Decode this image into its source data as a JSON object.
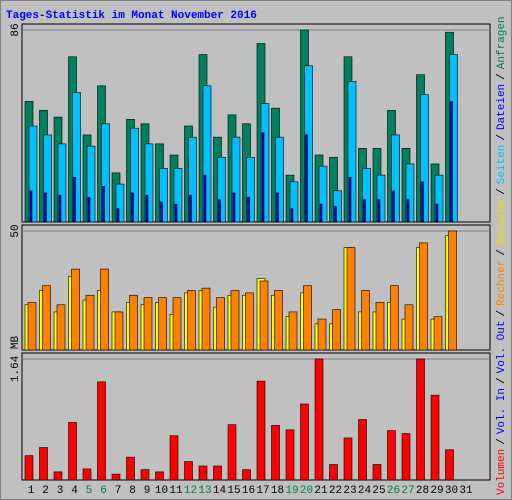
{
  "chart_data": [
    {
      "type": "bar",
      "title": "Tages-Statistik im Monat November 2016",
      "ylim": [
        0,
        86
      ],
      "yticks": [
        86
      ],
      "series": [
        {
          "name": "Anfragen",
          "color": "#00805c",
          "values": [
            54,
            50,
            47,
            74,
            39,
            61,
            22,
            46,
            44,
            35,
            30,
            43,
            75,
            38,
            48,
            44,
            80,
            51,
            21,
            86,
            30,
            29,
            74,
            33,
            33,
            50,
            33,
            66,
            26,
            85,
            0
          ]
        },
        {
          "name": "Dateien",
          "color": "#00c0ff",
          "values": [
            43,
            39,
            35,
            58,
            34,
            44,
            17,
            42,
            35,
            24,
            24,
            38,
            61,
            29,
            38,
            29,
            53,
            38,
            18,
            70,
            25,
            14,
            63,
            24,
            21,
            39,
            26,
            57,
            21,
            75,
            0
          ]
        },
        {
          "name": "Seiten",
          "color": "#0000ff",
          "values": [
            14,
            13,
            12,
            20,
            11,
            16,
            6,
            13,
            12,
            9,
            8,
            12,
            21,
            10,
            13,
            11,
            40,
            13,
            6,
            39,
            8,
            7,
            20,
            10,
            10,
            14,
            10,
            18,
            8,
            54,
            0
          ]
        }
      ]
    },
    {
      "type": "bar",
      "ylim": [
        0,
        50
      ],
      "yticks": [
        50
      ],
      "series": [
        {
          "name": "Besuche",
          "color": "#ffff00",
          "values": [
            19,
            25,
            16,
            31,
            21,
            25,
            16,
            20,
            19,
            20,
            15,
            24,
            25,
            18,
            23,
            23,
            30,
            23,
            14,
            24,
            11,
            11,
            43,
            16,
            16,
            20,
            13,
            43,
            13,
            48,
            0
          ]
        },
        {
          "name": "Rechner",
          "color": "#ff8000",
          "values": [
            20,
            27,
            19,
            34,
            23,
            34,
            16,
            23,
            22,
            22,
            22,
            25,
            26,
            22,
            25,
            24,
            29,
            25,
            16,
            27,
            13,
            17,
            43,
            25,
            20,
            27,
            19,
            45,
            14,
            50,
            0
          ]
        }
      ]
    },
    {
      "type": "bar",
      "ylim": [
        0,
        1.64
      ],
      "yticks": [
        {
          "value": 1.64,
          "label": "1.64 MB"
        }
      ],
      "categories": [
        "1",
        "2",
        "3",
        "4",
        "5",
        "6",
        "7",
        "8",
        "9",
        "10",
        "11",
        "12",
        "13",
        "14",
        "15",
        "16",
        "17",
        "18",
        "19",
        "20",
        "21",
        "22",
        "23",
        "24",
        "25",
        "26",
        "27",
        "28",
        "29",
        "30",
        "31"
      ],
      "category_colors": [
        "#000",
        "#000",
        "#000",
        "#000",
        "#008040",
        "#008040",
        "#000",
        "#000",
        "#000",
        "#000",
        "#000",
        "#008040",
        "#008040",
        "#000",
        "#000",
        "#000",
        "#000",
        "#000",
        "#008040",
        "#008040",
        "#000",
        "#000",
        "#000",
        "#000",
        "#000",
        "#008040",
        "#008040",
        "#000",
        "#000",
        "#000",
        "#000"
      ],
      "series": [
        {
          "name": "Volumen",
          "color": "#ff0000",
          "values": [
            0.33,
            0.44,
            0.11,
            0.78,
            0.15,
            1.33,
            0.08,
            0.31,
            0.14,
            0.11,
            0.6,
            0.25,
            0.19,
            0.19,
            0.75,
            0.14,
            1.34,
            0.74,
            0.68,
            1.03,
            1.64,
            0.21,
            0.57,
            0.82,
            0.21,
            0.67,
            0.63,
            1.64,
            1.15,
            0.41,
            0
          ]
        }
      ]
    }
  ],
  "legend": [
    {
      "name": "Volumen",
      "color": "#ff0000"
    },
    {
      "name": "Vol. In",
      "color": "#0000ff"
    },
    {
      "name": "Vol. Out",
      "color": "#0000ff"
    },
    {
      "name": "Rechner",
      "color": "#ff8000"
    },
    {
      "name": "Besuche",
      "color": "#e0e000"
    },
    {
      "name": "Seiten",
      "color": "#00c0ff"
    },
    {
      "name": "Dateien",
      "color": "#0000ff"
    },
    {
      "name": "Anfragen",
      "color": "#00805c"
    }
  ],
  "legend_separator": "/"
}
